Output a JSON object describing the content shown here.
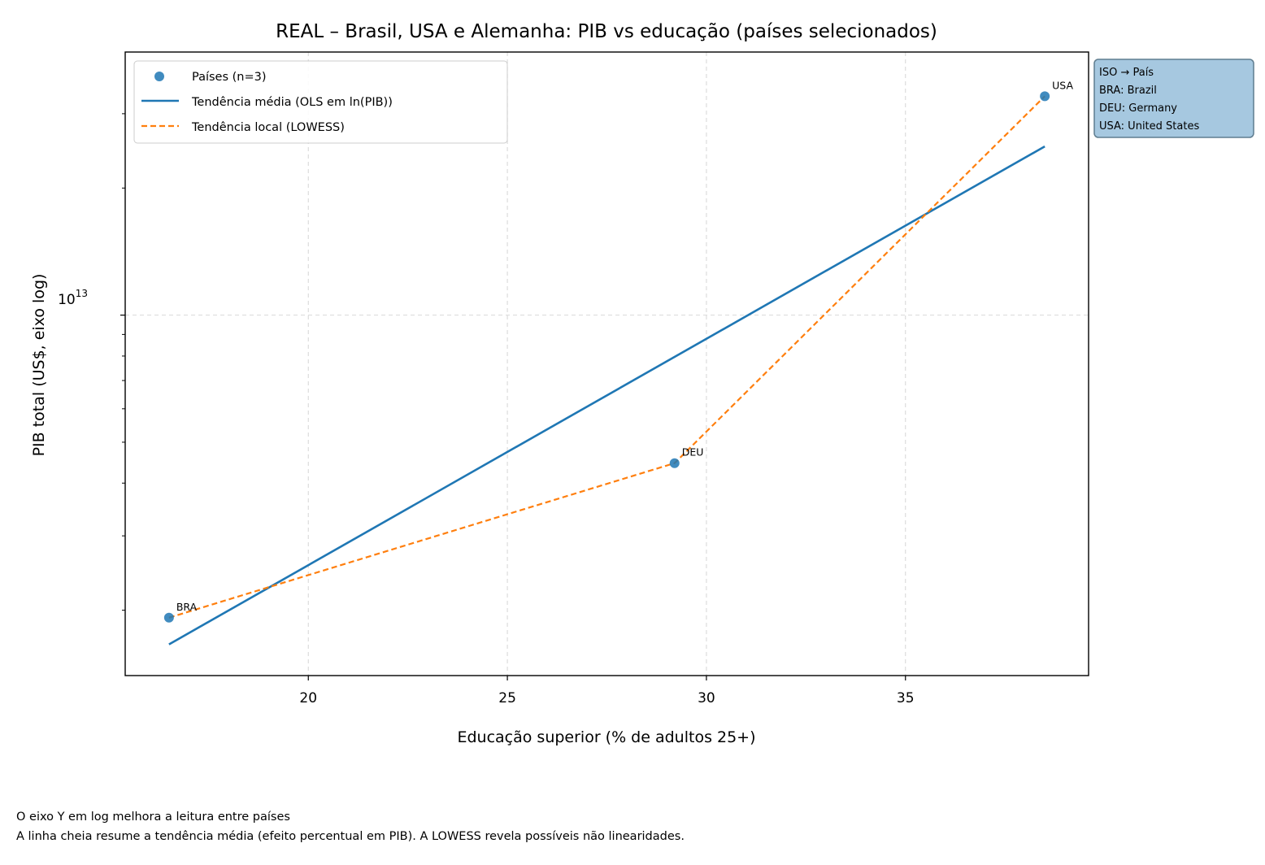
{
  "chart_data": {
    "type": "scatter",
    "title": "REAL – Brasil, USA e Alemanha: PIB vs educação (países selecionados)",
    "xlabel": "Educação superior (% de adultos 25+)",
    "ylabel": "PIB total (US$, eixo log)",
    "x_scale": "linear",
    "y_scale": "log",
    "xlim": [
      15.4,
      39.6
    ],
    "ylim": [
      1400000000000.0,
      42000000000000.0
    ],
    "x_ticks": [
      20,
      25,
      30,
      35
    ],
    "x_tick_labels": [
      "20",
      "25",
      "30",
      "35"
    ],
    "y_major_ticks": [
      10000000000000.0
    ],
    "y_major_tick_base": "10",
    "y_major_tick_exp": "13",
    "y_minor_ticks": [
      2000000000000.0,
      3000000000000.0,
      4000000000000.0,
      5000000000000.0,
      6000000000000.0,
      7000000000000.0,
      8000000000000.0,
      9000000000000.0,
      20000000000000.0,
      30000000000000.0
    ],
    "grid": true,
    "legend_position": "upper-left",
    "series": [
      {
        "name": "Países (n=3)",
        "kind": "scatter",
        "color": "#1f77b4",
        "points": [
          {
            "label": "BRA",
            "x": 16.5,
            "y": 1920000000000.0
          },
          {
            "label": "DEU",
            "x": 29.2,
            "y": 4460000000000.0
          },
          {
            "label": "USA",
            "x": 38.5,
            "y": 33000000000000.0
          }
        ]
      },
      {
        "name": "Tendência média (OLS em ln(PIB))",
        "kind": "line",
        "style": "solid",
        "color": "#1f77b4",
        "x": [
          16.5,
          38.5
        ],
        "y": [
          1660000000000.0,
          25100000000000.0
        ]
      },
      {
        "name": "Tendência local (LOWESS)",
        "kind": "line",
        "style": "dashed",
        "color": "#ff7f0e",
        "x": [
          16.5,
          29.2,
          38.5
        ],
        "y": [
          1920000000000.0,
          4460000000000.0,
          33000000000000.0
        ]
      }
    ],
    "iso_box": {
      "title": "ISO → País",
      "lines": [
        "BRA: Brazil",
        "DEU: Germany",
        "USA: United States"
      ],
      "background": "#a6c8e0"
    }
  },
  "notes": [
    "O eixo Y em log melhora a leitura entre países",
    "A linha cheia resume a tendência média (efeito percentual em PIB). A LOWESS revela possíveis não linearidades."
  ]
}
